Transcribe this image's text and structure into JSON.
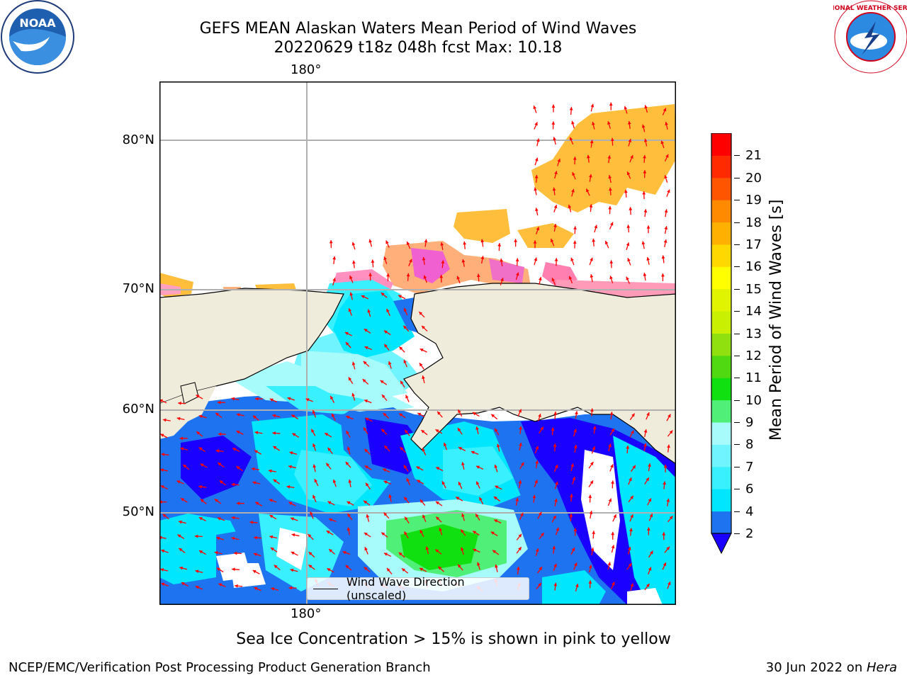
{
  "title": {
    "line1": "GEFS MEAN Alaskan Waters Mean Period of Wind Waves",
    "line2": "20220629 t18z 048h fcst   Max: 10.18"
  },
  "logos": {
    "left": {
      "name": "noaa-logo",
      "text": "NOAA"
    },
    "right": {
      "name": "nws-logo",
      "text": "NATIONAL WEATHER SERVICE"
    }
  },
  "map": {
    "lon_top_label": "180°",
    "lon_bottom_label": "180°",
    "lat_labels": [
      "80°N",
      "70°N",
      "60°N",
      "50°N"
    ],
    "land_color": "#efecdc",
    "grid_color": "#b0b0b0",
    "arrow_color": "#ff0000",
    "legend_label": "Wind Wave Direction (unscaled)"
  },
  "colorbar": {
    "title": "Mean Period of Wind Waves [s]",
    "ticks": [
      "2",
      "4",
      "6",
      "7",
      "8",
      "9",
      "10",
      "11",
      "12",
      "13",
      "14",
      "15",
      "16",
      "17",
      "18",
      "19",
      "20",
      "21"
    ],
    "colors": [
      "#1e74f0",
      "#00e6ff",
      "#38f0ff",
      "#70f4ff",
      "#a8fbfb",
      "#50f078",
      "#10e010",
      "#50d810",
      "#90e010",
      "#c8f000",
      "#e0f400",
      "#ffff00",
      "#ffd800",
      "#ffb000",
      "#ff8a00",
      "#ff5500",
      "#ff2a00",
      "#ff0000"
    ],
    "under_color": "#1a00ff"
  },
  "caption": "Sea Ice Concentration > 15% is shown in pink to yellow",
  "footer": {
    "left": "NCEP/EMC/Verification Post Processing Product Generation Branch",
    "right_date": "30 Jun 2022 on ",
    "right_host": "Hera"
  }
}
